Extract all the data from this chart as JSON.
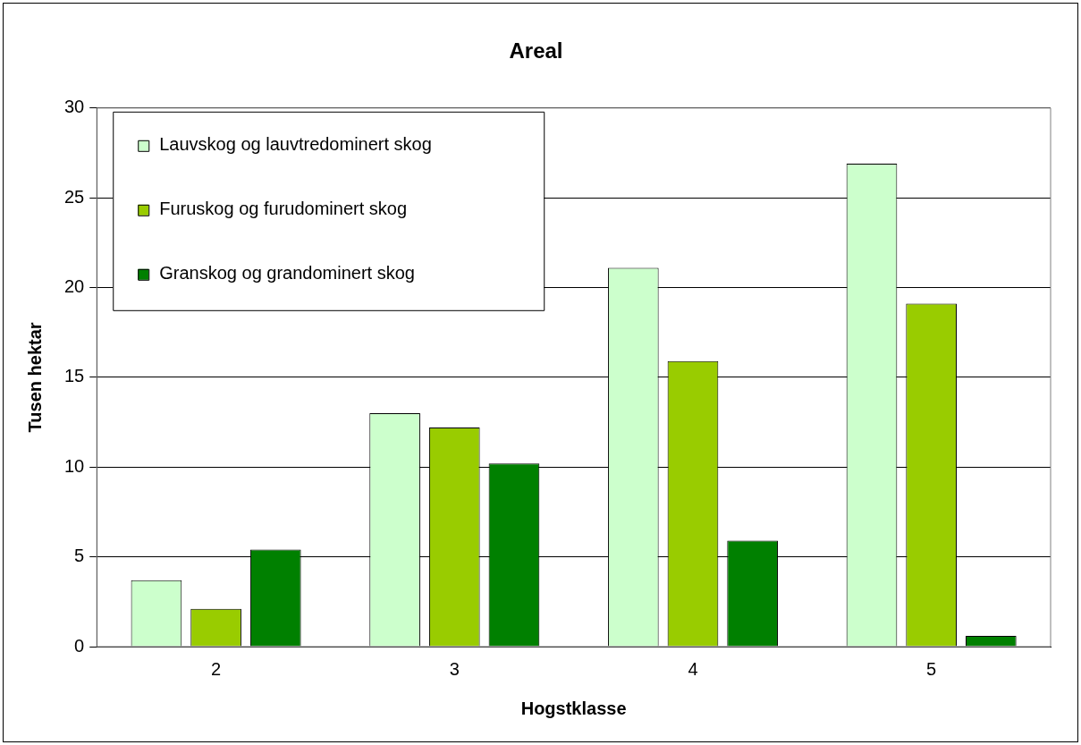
{
  "chart_data": {
    "type": "bar",
    "title": "Areal",
    "xlabel": "Hogstklasse",
    "ylabel": "Tusen hektar",
    "categories": [
      "2",
      "3",
      "4",
      "5"
    ],
    "series": [
      {
        "name": "Lauvskog og lauvtredominert skog",
        "color": "#ccffcc",
        "values": [
          3.7,
          13.0,
          21.1,
          26.9
        ]
      },
      {
        "name": "Furuskog og furudominert skog",
        "color": "#99cc00",
        "values": [
          2.1,
          12.2,
          15.9,
          19.1
        ]
      },
      {
        "name": "Granskog og grandominert skog",
        "color": "#008000",
        "values": [
          5.4,
          10.2,
          5.9,
          0.6
        ]
      }
    ],
    "ylim": [
      0,
      30
    ],
    "yticks": [
      0,
      5,
      10,
      15,
      20,
      25,
      30
    ],
    "grid": "y",
    "legend": "top left"
  }
}
